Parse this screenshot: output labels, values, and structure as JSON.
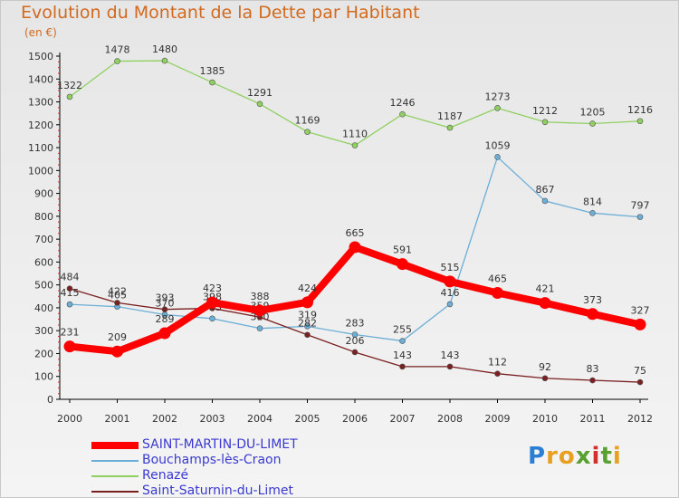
{
  "title": "Evolution du Montant de la Dette par Habitant",
  "subtitle": "(en €)",
  "logo": {
    "text": "Proxiti",
    "colors": [
      "#2a7fd4",
      "#e8a020",
      "#e8a020",
      "#58a030",
      "#d03030",
      "#58a030",
      "#e8a020"
    ]
  },
  "chart_data": {
    "type": "line",
    "title": "Evolution du Montant de la Dette par Habitant",
    "ylabel": "(en €)",
    "xlabel": "",
    "x": [
      "2000",
      "2001",
      "2002",
      "2003",
      "2004",
      "2005",
      "2006",
      "2007",
      "2008",
      "2009",
      "2010",
      "2011",
      "2012"
    ],
    "ylim": [
      0,
      1500
    ],
    "yticks": [
      0,
      100,
      200,
      300,
      400,
      500,
      600,
      700,
      800,
      900,
      1000,
      1100,
      1200,
      1300,
      1400,
      1500
    ],
    "grid": false,
    "legend_position": "bottom-left",
    "series": [
      {
        "name": "SAINT-MARTIN-DU-LIMET",
        "color": "#ff0000",
        "values": [
          231,
          209,
          289,
          423,
          388,
          424,
          665,
          591,
          515,
          465,
          421,
          373,
          327
        ],
        "labels": [
          "231",
          "209",
          "289",
          "423",
          "388",
          "424",
          "665",
          "591",
          "515",
          "465",
          "421",
          "373",
          "327"
        ]
      },
      {
        "name": "Bouchamps-lès-Craon",
        "color": "#6baed6",
        "values": [
          415,
          405,
          370,
          353,
          310,
          319,
          283,
          255,
          416,
          1059,
          867,
          814,
          797
        ],
        "labels": [
          "415",
          "405",
          "370",
          "353",
          "310",
          "319",
          "283",
          "255",
          "416",
          "1059",
          "867",
          "814",
          "797"
        ]
      },
      {
        "name": "Renazé",
        "color": "#90d060",
        "values": [
          1322,
          1478,
          1480,
          1385,
          1291,
          1169,
          1110,
          1246,
          1187,
          1273,
          1212,
          1205,
          1216
        ],
        "labels": [
          "1322",
          "1478",
          "1480",
          "1385",
          "1291",
          "1169",
          "1110",
          "1246",
          "1187",
          "1273",
          "1212",
          "1205",
          "1216"
        ]
      },
      {
        "name": "Saint-Saturnin-du-Limet",
        "color": "#7a2020",
        "values": [
          484,
          422,
          393,
          398,
          359,
          282,
          206,
          143,
          143,
          112,
          92,
          83,
          75
        ],
        "labels": [
          "484",
          "422",
          "393",
          "398",
          "359",
          "282",
          "206",
          "143",
          "143",
          "112",
          "92",
          "83",
          "75"
        ]
      }
    ]
  }
}
